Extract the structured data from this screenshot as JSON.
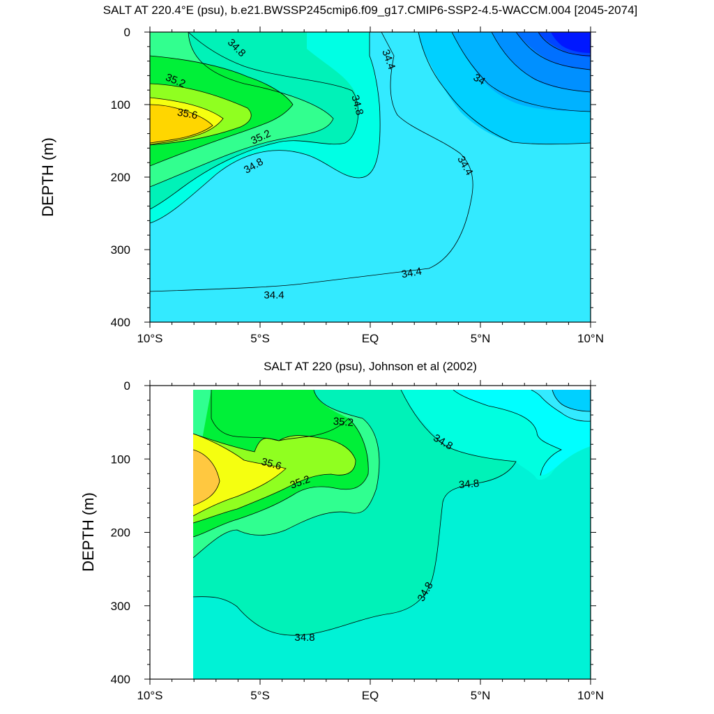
{
  "chart_data": [
    {
      "type": "contour",
      "title": "SALT AT 220.4°E (psu), b.e21.BWSSP245cmip6.f09_g17.CMIP6-SSP2-4.5-WACCM.004 [2045-2074]",
      "ylabel": "DEPTH (m)",
      "xlabel": "",
      "x_ticks": [
        "10°S",
        "5°S",
        "EQ",
        "5°N",
        "10°N"
      ],
      "x_tick_values": [
        -10,
        -5,
        0,
        5,
        10
      ],
      "y_ticks": [
        "0",
        "100",
        "200",
        "300",
        "400"
      ],
      "y_tick_values": [
        0,
        100,
        200,
        300,
        400
      ],
      "xlim": [
        -10,
        10
      ],
      "ylim": [
        400,
        0
      ],
      "y_reversed": true,
      "fill_levels": [
        {
          "psu": 34.4,
          "color": "#33eaff"
        },
        {
          "psu": 34.6,
          "color": "#00ffe4"
        },
        {
          "psu": 34.8,
          "color": "#00f2b8"
        },
        {
          "psu": 35.0,
          "color": "#32ff8f"
        },
        {
          "psu": 35.2,
          "color": "#00f038"
        },
        {
          "psu": 35.4,
          "color": "#90ff20"
        },
        {
          "psu": 35.6,
          "color": "#f5ff10"
        },
        {
          "psu": 35.8,
          "color": "#ffd600"
        }
      ],
      "fresh_levels": [
        {
          "psu": 34.4,
          "color": "#00ffff"
        },
        {
          "psu": 34.2,
          "color": "#2ee4ff"
        },
        {
          "psu": 34.0,
          "color": "#00d0ff"
        },
        {
          "psu": 33.8,
          "color": "#00b2ff"
        },
        {
          "psu": 33.6,
          "color": "#0090ff"
        },
        {
          "psu": 33.4,
          "color": "#0070ff"
        },
        {
          "psu": 33.2,
          "color": "#0046ff"
        },
        {
          "psu": 33.0,
          "color": "#0018ff"
        }
      ],
      "contour_labels": [
        "34.8",
        "35.2",
        "35.6",
        "35.2",
        "34.8",
        "34.8",
        "34.4",
        "34",
        "34.4",
        "34.4",
        "34.4"
      ],
      "colors": {
        "background": "#33eaff"
      }
    },
    {
      "type": "contour",
      "title": "SALT AT 220 (psu), Johnson et al (2002)",
      "ylabel": "DEPTH (m)",
      "xlabel": "",
      "x_ticks": [
        "10°S",
        "5°S",
        "EQ",
        "5°N",
        "10°N"
      ],
      "x_tick_values": [
        -10,
        -5,
        0,
        5,
        10
      ],
      "y_ticks": [
        "0",
        "100",
        "200",
        "300",
        "400"
      ],
      "y_tick_values": [
        0,
        100,
        200,
        300,
        400
      ],
      "xlim": [
        -10,
        10
      ],
      "ylim": [
        400,
        0
      ],
      "y_reversed": true,
      "data_xlim": [
        -8,
        10
      ],
      "fill_levels": [
        {
          "psu": 34.6,
          "color": "#00ffe0"
        },
        {
          "psu": 34.8,
          "color": "#00f2b8"
        },
        {
          "psu": 35.0,
          "color": "#30ff90"
        },
        {
          "psu": 35.2,
          "color": "#00f038"
        },
        {
          "psu": 35.4,
          "color": "#90ff20"
        },
        {
          "psu": 35.6,
          "color": "#f5ff10"
        },
        {
          "psu": 35.8,
          "color": "#ffc840"
        }
      ],
      "fresh_levels": [
        {
          "psu": 34.6,
          "color": "#00ffe0"
        },
        {
          "psu": 34.4,
          "color": "#00ffff"
        },
        {
          "psu": 34.2,
          "color": "#33eaff"
        },
        {
          "psu": 34.0,
          "color": "#00d0ff"
        }
      ],
      "contour_labels": [
        "35.2",
        "34.8",
        "35.6",
        "35.2",
        "34.8",
        "34.8",
        "34.8"
      ],
      "colors": {
        "background": "#00f2d6"
      }
    }
  ]
}
